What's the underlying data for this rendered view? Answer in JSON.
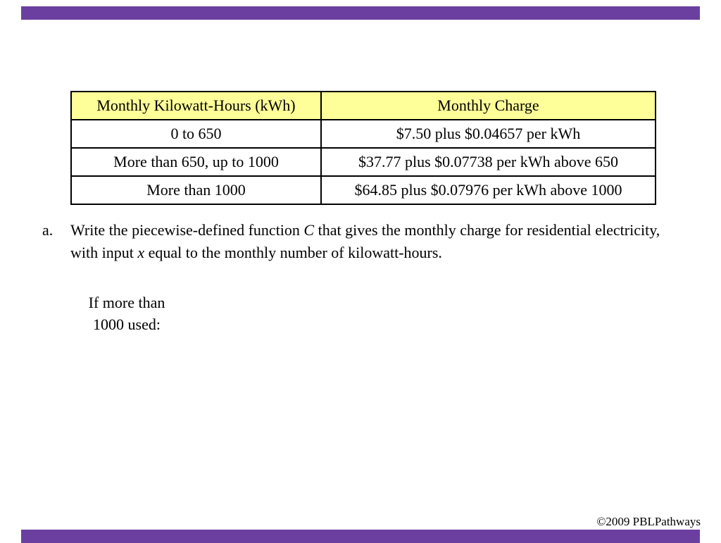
{
  "colors": {
    "accent": "#6B3FA0",
    "header-yellow": "#FFFF99"
  },
  "table": {
    "headers": [
      "Monthly Kilowatt-Hours (kWh)",
      "Monthly Charge"
    ],
    "rows": [
      [
        "0 to 650",
        "$7.50 plus $0.04657 per kWh"
      ],
      [
        "More than 650, up to 1000",
        "$37.77 plus $0.07738 per kWh above 650"
      ],
      [
        "More than 1000",
        "$64.85 plus $0.07976 per kWh above 1000"
      ]
    ]
  },
  "question": {
    "label": "a.",
    "part1": "Write the piecewise-defined function ",
    "var1": "C",
    "part2": " that gives the monthly charge for residential electricity, with input ",
    "var2": "x",
    "part3": " equal to the monthly number of kilowatt-hours."
  },
  "note": {
    "line1": "If more than",
    "line2": "1000 used:"
  },
  "footer": {
    "copyright": "©2009 PBLPathways"
  }
}
